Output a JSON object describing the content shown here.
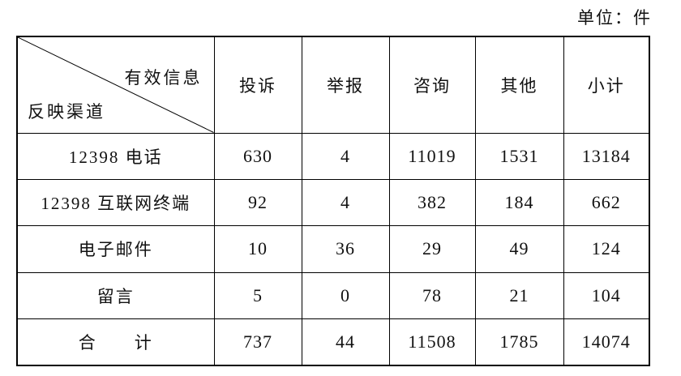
{
  "unit_label": "单位：件",
  "table": {
    "corner_top": "有效信息",
    "corner_bottom": "反映渠道",
    "columns": [
      "投诉",
      "举报",
      "咨询",
      "其他",
      "小计"
    ],
    "rows": [
      {
        "label": "12398 电话",
        "values": [
          "630",
          "4",
          "11019",
          "1531",
          "13184"
        ]
      },
      {
        "label": "12398 互联网终端",
        "values": [
          "92",
          "4",
          "382",
          "184",
          "662"
        ]
      },
      {
        "label": "电子邮件",
        "values": [
          "10",
          "36",
          "29",
          "49",
          "124"
        ]
      },
      {
        "label": "留言",
        "values": [
          "5",
          "0",
          "78",
          "21",
          "104"
        ]
      },
      {
        "label": "合　　计",
        "values": [
          "737",
          "44",
          "11508",
          "1785",
          "14074"
        ]
      }
    ]
  },
  "chart_data": {
    "type": "table",
    "title": "",
    "unit": "单位：件",
    "row_header_label": "反映渠道",
    "column_header_label": "有效信息",
    "columns": [
      "投诉",
      "举报",
      "咨询",
      "其他",
      "小计"
    ],
    "rows": [
      "12398 电话",
      "12398 互联网终端",
      "电子邮件",
      "留言",
      "合计"
    ],
    "values": [
      [
        630,
        4,
        11019,
        1531,
        13184
      ],
      [
        92,
        4,
        382,
        184,
        662
      ],
      [
        10,
        36,
        29,
        49,
        124
      ],
      [
        5,
        0,
        78,
        21,
        104
      ],
      [
        737,
        44,
        11508,
        1785,
        14074
      ]
    ]
  }
}
